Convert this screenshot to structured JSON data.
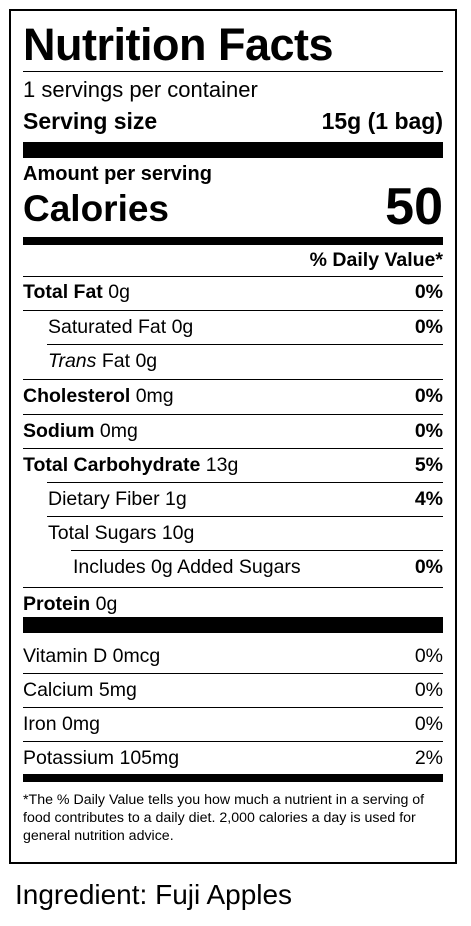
{
  "label": {
    "title": "Nutrition Facts",
    "servings": "1 servings per container",
    "serving_size_label": "Serving size",
    "serving_size_value": "15g (1 bag)",
    "amount_per_serving": "Amount per serving",
    "calories_label": "Calories",
    "calories_value": "50",
    "daily_value_header": "% Daily Value*",
    "nutrients": [
      {
        "name": "Total Fat",
        "amount": "0g",
        "dv": "0%"
      },
      {
        "name": "Saturated Fat",
        "amount": "0g",
        "dv": "0%"
      },
      {
        "name": "Trans",
        "name_suffix": "Fat",
        "amount": "0g",
        "dv": ""
      },
      {
        "name": "Cholesterol",
        "amount": "0mg",
        "dv": "0%"
      },
      {
        "name": "Sodium",
        "amount": "0mg",
        "dv": "0%"
      },
      {
        "name": "Total Carbohydrate",
        "amount": "13g",
        "dv": "5%"
      },
      {
        "name": "Dietary Fiber",
        "amount": "1g",
        "dv": "4%"
      },
      {
        "name": "Total Sugars",
        "amount": "10g",
        "dv": ""
      },
      {
        "name": "Includes 0g Added Sugars",
        "amount": "",
        "dv": "0%"
      },
      {
        "name": "Protein",
        "amount": "0g",
        "dv": ""
      }
    ],
    "vitamins": [
      {
        "name": "Vitamin D",
        "amount": "0mcg",
        "dv": "0%"
      },
      {
        "name": "Calcium",
        "amount": "5mg",
        "dv": "0%"
      },
      {
        "name": "Iron",
        "amount": "0mg",
        "dv": "0%"
      },
      {
        "name": "Potassium",
        "amount": "105mg",
        "dv": "2%"
      }
    ],
    "footnote": "*The % Daily Value tells you how much a nutrient in a serving of food contributes to a daily diet. 2,000 calories a day is used for general nutrition advice."
  },
  "ingredient_line": "Ingredient: Fuji Apples"
}
